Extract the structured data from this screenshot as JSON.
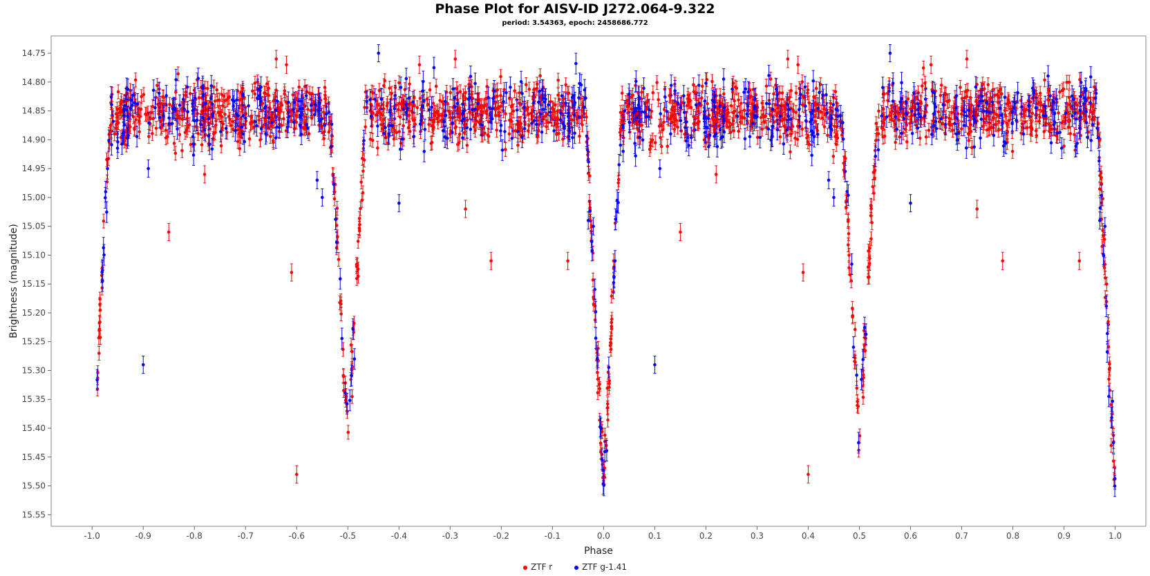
{
  "chart_data": {
    "type": "scatter",
    "title": "Phase Plot for AISV-ID J272.064-9.322",
    "subtitle": "period: 3.54363, epoch: 2458686.772",
    "xlabel": "Phase",
    "ylabel": "Brightness (magnitude)",
    "xlim": [
      -1.08,
      1.06
    ],
    "ylim": [
      15.57,
      14.72
    ],
    "y_inverted": true,
    "x_ticks": [
      "-1.0",
      "-0.9",
      "-0.8",
      "-0.7",
      "-0.6",
      "-0.5",
      "-0.4",
      "-0.3",
      "-0.2",
      "-0.1",
      "0.0",
      "0.1",
      "0.2",
      "0.3",
      "0.4",
      "0.5",
      "0.6",
      "0.7",
      "0.8",
      "0.9",
      "1.0"
    ],
    "y_ticks": [
      "14.75",
      "14.80",
      "14.85",
      "14.90",
      "14.95",
      "15.00",
      "15.05",
      "15.10",
      "15.15",
      "15.20",
      "15.25",
      "15.30",
      "15.35",
      "15.40",
      "15.45",
      "15.50",
      "15.55"
    ],
    "grid": false,
    "legend_position": "bottom",
    "model": {
      "baseline_mag": 14.855,
      "primary_eclipse": {
        "center_phase": 0.0,
        "depth_mag": 0.65,
        "half_width": 0.035
      },
      "secondary_eclipse": {
        "center_phase": 0.5,
        "depth_mag": 0.55,
        "half_width": 0.035
      },
      "scatter_mag": 0.025
    },
    "series": [
      {
        "name": "ZTF r",
        "color": "#ff0000",
        "count": 900,
        "outliers": [
          [
            -0.85,
            15.06
          ],
          [
            -0.61,
            15.13
          ],
          [
            -0.6,
            15.48
          ],
          [
            -0.22,
            15.11
          ],
          [
            -0.07,
            15.11
          ],
          [
            -0.27,
            15.02
          ],
          [
            -0.78,
            14.96
          ],
          [
            -0.64,
            14.76
          ],
          [
            -0.62,
            14.77
          ],
          [
            -0.36,
            14.77
          ],
          [
            -0.29,
            14.76
          ]
        ]
      },
      {
        "name": "ZTF g-1.41",
        "color": "#0000ff",
        "count": 320,
        "outliers": [
          [
            -0.9,
            15.29
          ],
          [
            -0.89,
            14.95
          ],
          [
            -0.4,
            15.01
          ],
          [
            -0.03,
            15.04
          ],
          [
            -0.02,
            15.05
          ],
          [
            -0.56,
            14.97
          ],
          [
            -0.55,
            15.0
          ],
          [
            -0.44,
            14.75
          ]
        ]
      }
    ]
  }
}
